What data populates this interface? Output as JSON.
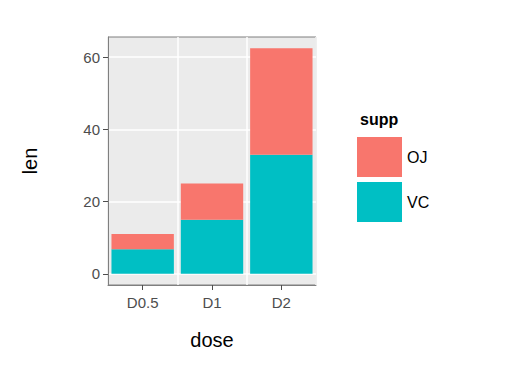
{
  "chart_data": {
    "type": "bar",
    "stacked": true,
    "x_label": "dose",
    "y_label": "len",
    "legend_title": "supp",
    "categories": [
      "D0.5",
      "D1",
      "D2"
    ],
    "series": [
      {
        "name": "OJ",
        "color": "#F8766D",
        "values": [
          4.2,
          10,
          29.5
        ]
      },
      {
        "name": "VC",
        "color": "#00BFC4",
        "values": [
          6.8,
          15,
          33
        ]
      }
    ],
    "ylim": [
      -3.1,
      65.6
    ],
    "yticks": [
      0,
      20,
      40,
      60
    ],
    "grid": true,
    "legend": "right"
  }
}
